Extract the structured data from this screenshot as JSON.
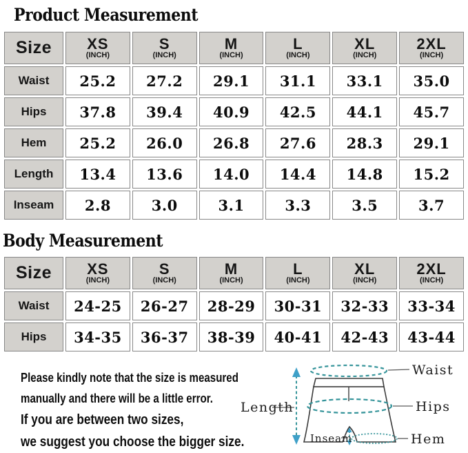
{
  "product_section": {
    "title": "Product Measurement",
    "table": {
      "size_label": "Size",
      "unit_label": "(INCH)",
      "sizes": [
        "XS",
        "S",
        "M",
        "L",
        "XL",
        "2XL"
      ],
      "rows": [
        {
          "label": "Waist",
          "values": [
            "25.2",
            "27.2",
            "29.1",
            "31.1",
            "33.1",
            "35.0"
          ]
        },
        {
          "label": "Hips",
          "values": [
            "37.8",
            "39.4",
            "40.9",
            "42.5",
            "44.1",
            "45.7"
          ]
        },
        {
          "label": "Hem",
          "values": [
            "25.2",
            "26.0",
            "26.8",
            "27.6",
            "28.3",
            "29.1"
          ]
        },
        {
          "label": "Length",
          "values": [
            "13.4",
            "13.6",
            "14.0",
            "14.4",
            "14.8",
            "15.2"
          ]
        },
        {
          "label": "Inseam",
          "values": [
            "2.8",
            "3.0",
            "3.1",
            "3.3",
            "3.5",
            "3.7"
          ]
        }
      ]
    }
  },
  "body_section": {
    "title": "Body Measurement",
    "table": {
      "size_label": "Size",
      "unit_label": "(INCH)",
      "sizes": [
        "XS",
        "S",
        "M",
        "L",
        "XL",
        "2XL"
      ],
      "rows": [
        {
          "label": "Waist",
          "values": [
            "24-25",
            "26-27",
            "28-29",
            "30-31",
            "32-33",
            "33-34"
          ]
        },
        {
          "label": "Hips",
          "values": [
            "34-35",
            "36-37",
            "38-39",
            "40-41",
            "42-43",
            "43-44"
          ]
        }
      ]
    }
  },
  "note": {
    "lines": [
      "Please kindly note that the size is measured",
      "manually and there will be a little error.",
      "If you are between two sizes,",
      "we suggest you choose the bigger size."
    ]
  },
  "diagram": {
    "labels": {
      "waist": "Waist",
      "hips": "Hips",
      "hem": "Hem",
      "length": "Length",
      "inseam": "Inseam"
    },
    "colors": {
      "dash": "#35949a",
      "arrow": "#3fa0c8",
      "outline": "#3a3a3a",
      "connector": "#5a5a5a"
    }
  },
  "colors": {
    "header_bg": "#d3d1cd",
    "cell_border": "#878787",
    "text": "#111111"
  }
}
